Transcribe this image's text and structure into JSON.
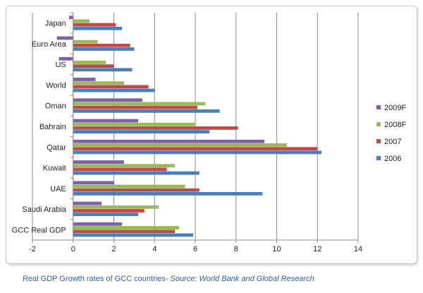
{
  "caption": {
    "main": "Real GDP Growth rates of GCC countries- ",
    "source": "Source: World Bank and Global Research",
    "color": "#2e5ea8"
  },
  "chart_data": {
    "type": "bar",
    "orientation": "horizontal",
    "categories": [
      "Japan",
      "Euro Area",
      "US",
      "World",
      "Oman",
      "Bahrain",
      "Qatar",
      "Kuwait",
      "UAE",
      "Saudi Arabia",
      "GCC Real GDP"
    ],
    "series": [
      {
        "name": "2009F",
        "color": "#7f60a8",
        "values": [
          -0.2,
          -0.8,
          -0.7,
          1.1,
          3.4,
          3.2,
          9.4,
          2.5,
          2.0,
          1.4,
          2.4
        ]
      },
      {
        "name": "2008F",
        "color": "#98b954",
        "values": [
          0.8,
          1.2,
          1.6,
          2.5,
          6.5,
          6.0,
          10.5,
          5.0,
          5.5,
          4.2,
          5.2
        ]
      },
      {
        "name": "2007",
        "color": "#be4b48",
        "values": [
          2.1,
          2.8,
          2.0,
          3.7,
          6.1,
          8.1,
          12.0,
          4.6,
          6.2,
          3.5,
          5.0
        ]
      },
      {
        "name": "2006",
        "color": "#4a7ebb",
        "values": [
          2.4,
          3.0,
          2.9,
          4.0,
          7.2,
          6.7,
          12.2,
          6.2,
          9.3,
          3.2,
          5.9
        ]
      }
    ],
    "xlim": [
      -2,
      14
    ],
    "xticks": [
      "-2",
      "0",
      "2",
      "4",
      "6",
      "8",
      "10",
      "12",
      "14"
    ],
    "grid": "vertical major gridlines",
    "legend_position": "right",
    "title": "",
    "xlabel": "",
    "ylabel": ""
  }
}
